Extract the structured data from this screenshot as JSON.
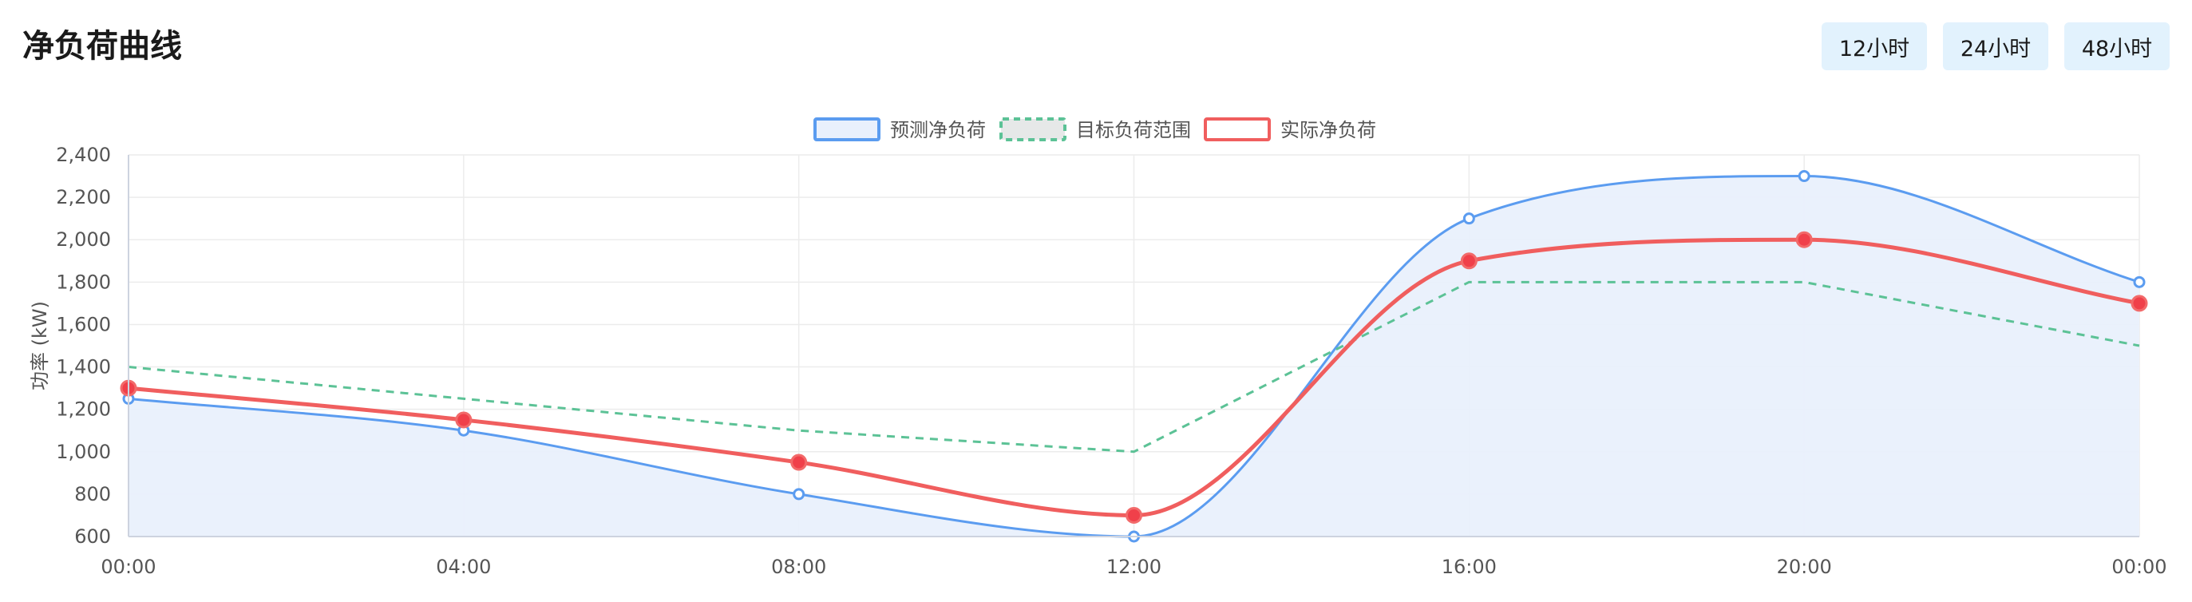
{
  "header": {
    "title": "净负荷曲线",
    "buttons": [
      "12小时",
      "24小时",
      "48小时"
    ]
  },
  "chart_data": {
    "type": "line",
    "title": "",
    "xlabel": "",
    "ylabel": "功率 (kW)",
    "categories": [
      "00:00",
      "04:00",
      "08:00",
      "12:00",
      "16:00",
      "20:00",
      "00:00"
    ],
    "ylim": [
      600,
      2400
    ],
    "yticks": [
      "2,400",
      "2,200",
      "2,000",
      "1,800",
      "1,600",
      "1,400",
      "1,200",
      "1,000",
      "800",
      "600"
    ],
    "grid": true,
    "legend_position": "top-center",
    "series": [
      {
        "name": "预测净负荷",
        "values": [
          1250,
          1100,
          800,
          600,
          2100,
          2300,
          1800
        ],
        "color": "#5b9cf0",
        "fill": "#e9f0fc",
        "style": "smooth-area"
      },
      {
        "name": "目标负荷范围",
        "values": [
          1400,
          1250,
          1100,
          1000,
          1800,
          1800,
          1500
        ],
        "color": "#5cc296",
        "fill": "#e6e8e8",
        "style": "dashed"
      },
      {
        "name": "实际净负荷",
        "values": [
          1300,
          1150,
          950,
          700,
          1900,
          2000,
          1700
        ],
        "color": "#f05e5e",
        "fill": "#ffffff",
        "style": "smooth"
      }
    ]
  }
}
